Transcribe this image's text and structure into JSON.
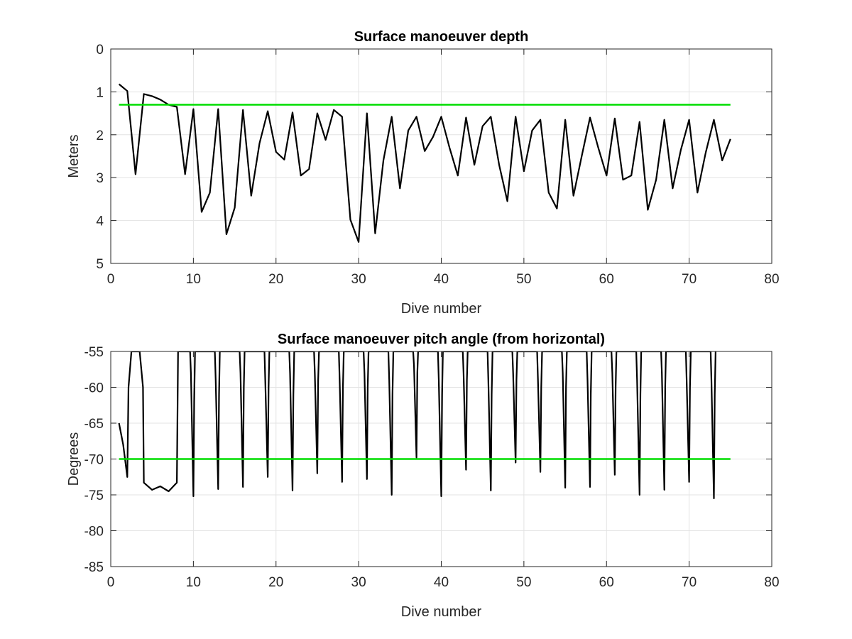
{
  "chart_data": [
    {
      "type": "line",
      "title": "Surface manoeuver depth",
      "xlabel": "Dive number",
      "ylabel": "Meters",
      "xlim": [
        0,
        80
      ],
      "ylim": [
        0,
        5
      ],
      "y_reversed": true,
      "grid": true,
      "xticks": [
        "0",
        "10",
        "20",
        "30",
        "40",
        "50",
        "60",
        "70",
        "80"
      ],
      "yticks": [
        "0",
        "1",
        "2",
        "3",
        "4",
        "5"
      ],
      "series": [
        {
          "color": "#000000",
          "x": [
            1,
            2,
            3,
            4,
            5,
            6,
            7,
            8,
            9,
            10,
            11,
            12,
            13,
            14,
            15,
            16,
            17,
            18,
            19,
            20,
            21,
            22,
            23,
            24,
            25,
            26,
            27,
            28,
            29,
            30,
            31,
            32,
            33,
            34,
            35,
            36,
            37,
            38,
            39,
            40,
            41,
            42,
            43,
            44,
            45,
            46,
            47,
            48,
            49,
            50,
            51,
            52,
            53,
            54,
            55,
            56,
            57,
            58,
            59,
            60,
            61,
            62,
            63,
            64,
            65,
            66,
            67,
            68,
            69,
            70,
            71,
            72,
            73,
            74,
            75
          ],
          "y": [
            0.82,
            0.98,
            2.92,
            1.05,
            1.1,
            1.18,
            1.3,
            1.35,
            2.92,
            1.4,
            3.8,
            3.35,
            1.4,
            4.32,
            3.7,
            1.42,
            3.42,
            2.2,
            1.45,
            2.4,
            2.58,
            1.48,
            2.95,
            2.8,
            1.5,
            2.12,
            1.42,
            1.58,
            3.98,
            4.5,
            1.5,
            4.3,
            2.6,
            1.58,
            3.25,
            1.9,
            1.58,
            2.38,
            2.05,
            1.58,
            2.3,
            2.95,
            1.6,
            2.7,
            1.8,
            1.58,
            2.7,
            3.55,
            1.58,
            2.85,
            1.9,
            1.65,
            3.35,
            3.72,
            1.65,
            3.42,
            2.5,
            1.6,
            2.3,
            2.95,
            1.62,
            3.05,
            2.95,
            1.7,
            3.75,
            3.05,
            1.65,
            3.25,
            2.35,
            1.65,
            3.35,
            2.42,
            1.65,
            2.6,
            2.1
          ]
        },
        {
          "color": "#00dd00",
          "x": [
            1,
            75
          ],
          "y": [
            1.3,
            1.3
          ]
        }
      ]
    },
    {
      "type": "line",
      "title": "Surface manoeuver pitch angle (from horizontal)",
      "xlabel": "Dive number",
      "ylabel": "Degrees",
      "xlim": [
        0,
        80
      ],
      "ylim": [
        -85,
        -55
      ],
      "grid": true,
      "xticks": [
        "0",
        "10",
        "20",
        "30",
        "40",
        "50",
        "60",
        "70",
        "80"
      ],
      "yticks": [
        "-55",
        "-60",
        "-65",
        "-70",
        "-75",
        "-80",
        "-85"
      ],
      "series": [
        {
          "color": "#000000",
          "x": [
            1,
            1.5,
            2,
            2.15,
            2.5,
            3.5,
            3.9,
            4,
            5,
            6,
            7,
            8,
            8.15,
            9.6,
            9.7,
            10,
            10.1,
            10.2,
            12.6,
            12.7,
            13,
            13.1,
            13.2,
            15.6,
            15.7,
            16,
            16.1,
            16.2,
            18.6,
            18.7,
            19,
            19.1,
            19.2,
            21.6,
            21.7,
            22,
            22.1,
            22.2,
            24.6,
            24.7,
            25,
            25.1,
            25.2,
            27.6,
            27.7,
            28,
            28.1,
            28.2,
            30.6,
            30.7,
            31,
            31.1,
            31.2,
            33.6,
            33.7,
            34,
            34.1,
            34.2,
            36.6,
            36.7,
            37,
            37.1,
            37.2,
            39.6,
            39.7,
            40,
            40.1,
            40.2,
            42.6,
            42.7,
            43,
            43.1,
            43.2,
            45.6,
            45.7,
            46,
            46.1,
            46.2,
            48.6,
            48.7,
            49,
            49.1,
            49.2,
            51.6,
            51.7,
            52,
            52.1,
            52.2,
            54.6,
            54.7,
            55,
            55.1,
            55.2,
            57.6,
            57.7,
            58,
            58.1,
            58.2,
            60.6,
            60.7,
            61,
            61.1,
            61.2,
            63.6,
            63.7,
            64,
            64.1,
            64.2,
            66.6,
            66.7,
            67,
            67.1,
            67.2,
            69.6,
            69.7,
            70,
            70.1,
            70.2,
            72.6,
            72.7,
            73,
            73.1,
            73.2
          ],
          "y": [
            -65,
            -68,
            -72.5,
            -60,
            -55,
            -55,
            -60,
            -73.3,
            -74.3,
            -73.8,
            -74.5,
            -73.3,
            -55,
            -55,
            -58,
            -75.2,
            -62,
            -55,
            -55,
            -59,
            -74.2,
            -61,
            -55,
            -55,
            -58,
            -73.9,
            -60,
            -55,
            -55,
            -59,
            -72.5,
            -60,
            -55,
            -55,
            -58,
            -74.4,
            -61,
            -55,
            -55,
            -58,
            -72,
            -59,
            -55,
            -55,
            -59,
            -73.2,
            -60,
            -55,
            -55,
            -58,
            -72.8,
            -60,
            -55,
            -55,
            -59,
            -75,
            -61,
            -55,
            -55,
            -57,
            -69.8,
            -58,
            -55,
            -55,
            -59,
            -75.2,
            -61,
            -55,
            -55,
            -58,
            -71.5,
            -59,
            -55,
            -55,
            -59,
            -74.4,
            -61,
            -55,
            -55,
            -58,
            -70.5,
            -59,
            -55,
            -55,
            -59,
            -71.8,
            -60,
            -55,
            -55,
            -58,
            -74,
            -60,
            -55,
            -55,
            -59,
            -73.9,
            -61,
            -55,
            -55,
            -58,
            -72.2,
            -60,
            -55,
            -55,
            -59,
            -75,
            -61,
            -55,
            -55,
            -58,
            -74.3,
            -60,
            -55,
            -55,
            -59,
            -73.2,
            -60,
            -55,
            -55,
            -59,
            -75.5,
            -61,
            -55
          ]
        },
        {
          "color": "#00dd00",
          "x": [
            1,
            75
          ],
          "y": [
            -70,
            -70
          ]
        }
      ]
    }
  ]
}
